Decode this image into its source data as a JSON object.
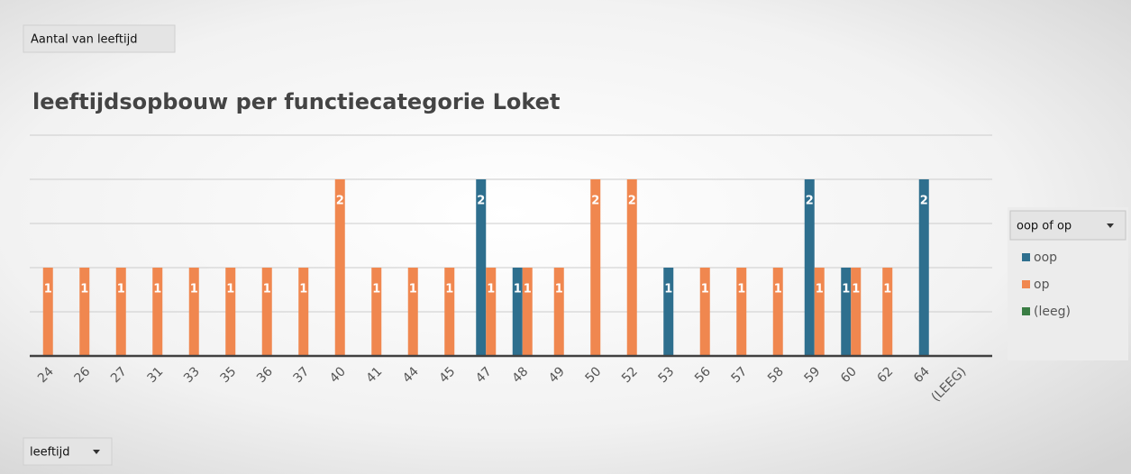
{
  "chart_data": {
    "type": "bar",
    "button": "Aantal van leeftijd",
    "title": "leeftijdsopbouw per functiecategorie Loket",
    "legend_title": "oop of op",
    "axis_field": "leeftijd",
    "categories": [
      "24",
      "26",
      "27",
      "31",
      "33",
      "35",
      "36",
      "37",
      "40",
      "41",
      "44",
      "45",
      "47",
      "48",
      "49",
      "50",
      "52",
      "53",
      "56",
      "57",
      "58",
      "59",
      "60",
      "62",
      "64",
      "(LEEG)"
    ],
    "series": [
      {
        "name": "oop",
        "color": "#2e6f8e",
        "values": [
          null,
          null,
          null,
          null,
          null,
          null,
          null,
          null,
          null,
          null,
          null,
          null,
          2,
          1,
          null,
          null,
          null,
          1,
          null,
          null,
          null,
          2,
          1,
          null,
          2,
          null
        ]
      },
      {
        "name": "op",
        "color": "#f0874f",
        "values": [
          1,
          1,
          1,
          1,
          1,
          1,
          1,
          1,
          2,
          1,
          1,
          1,
          1,
          1,
          1,
          2,
          2,
          null,
          1,
          1,
          1,
          1,
          1,
          1,
          null,
          null
        ]
      },
      {
        "name": "(leeg)",
        "color": "#3a7d44",
        "values": [
          null,
          null,
          null,
          null,
          null,
          null,
          null,
          null,
          null,
          null,
          null,
          null,
          null,
          null,
          null,
          null,
          null,
          null,
          null,
          null,
          null,
          null,
          null,
          null,
          null,
          null
        ]
      }
    ],
    "ylim": [
      0,
      2.5
    ],
    "yticks": [
      0,
      0.5,
      1,
      1.5,
      2,
      2.5
    ],
    "grid": true,
    "legend": "right"
  }
}
